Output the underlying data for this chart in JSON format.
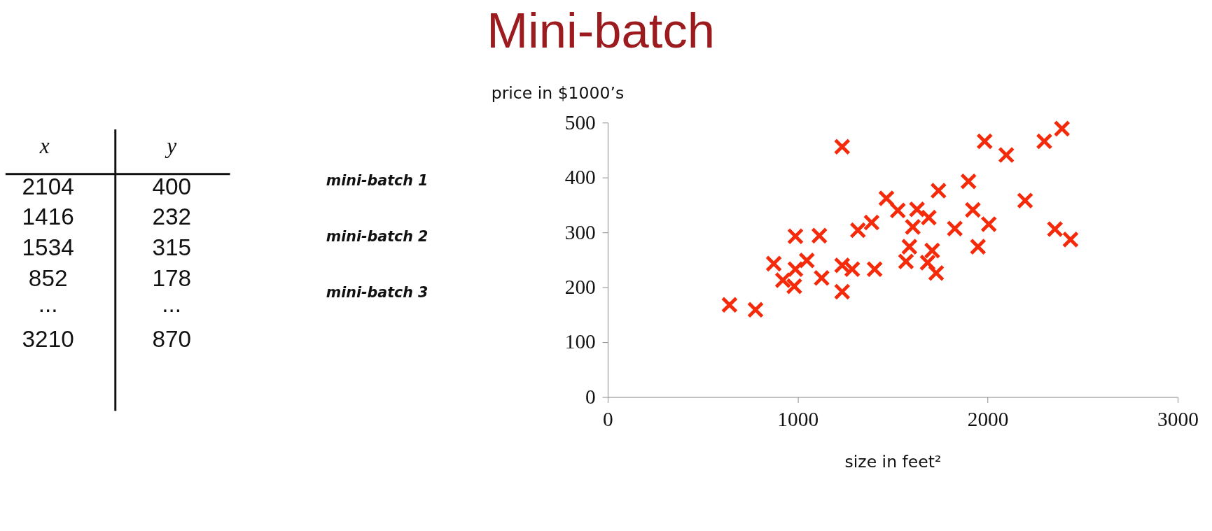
{
  "chart_data": [
    {
      "type": "other",
      "title": "Mini-batch",
      "annotations": [
        "x",
        "y",
        "2104",
        "400",
        "1416",
        "232",
        "1534",
        "315",
        "852",
        "178",
        "...",
        "...",
        "3210",
        "870",
        "mini-batch 1",
        "mini-batch 2",
        "mini-batch 3"
      ]
    },
    {
      "type": "scatter",
      "xlabel": "size in feet²",
      "ylabel": "price in $1000’s",
      "x": [
        641,
        778,
        988,
        1114,
        874,
        922,
        982,
        988,
        1048,
        1126,
        1234,
        1287,
        1234,
        1234,
        1317,
        1389,
        1405,
        1467,
        1527,
        1628,
        1606,
        1588,
        1570,
        1690,
        1708,
        1684,
        1729,
        1741,
        1827,
        1899,
        1922,
        2006,
        1949,
        1984,
        2098,
        2197,
        2298,
        2391,
        2354,
        2436
      ],
      "series": [
        {
          "color": "#f52a0a",
          "values": [
            168,
            159,
            293,
            294,
            243,
            213,
            202,
            233,
            249,
            217,
            240,
            233,
            192,
            456,
            304,
            318,
            233,
            362,
            340,
            342,
            310,
            274,
            247,
            327,
            267,
            245,
            226,
            376,
            307,
            393,
            341,
            315,
            274,
            466,
            441,
            358,
            466,
            489,
            306,
            287
          ]
        }
      ],
      "xlim": [
        0,
        3000
      ],
      "xticks": [
        0,
        1000,
        2000,
        3000
      ],
      "ylim": [
        0,
        500
      ],
      "yticks": [
        0,
        100,
        200,
        300,
        400,
        500
      ],
      "marker": "cross",
      "grid": false
    }
  ]
}
